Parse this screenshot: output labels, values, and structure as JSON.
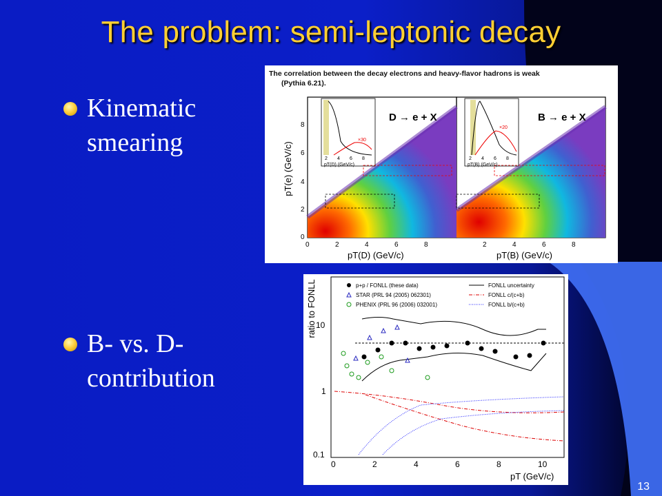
{
  "slide": {
    "title": "The problem: semi-leptonic decay",
    "bullets": [
      {
        "line1": "Kinematic",
        "line2": "smearing"
      },
      {
        "line1": "B- vs. D-",
        "line2": "contribution"
      }
    ],
    "slide_number": "13"
  },
  "figure_top": {
    "caption_line1": "The correlation between the decay electrons and heavy-flavor hadrons is weak",
    "caption_line2": "(Pythia 6.21).",
    "ylabel": "pT(e) (GeV/c)",
    "left_label": "D → e + X",
    "right_label": "B → e + X",
    "xlabel_left": "pT(D) (GeV/c)",
    "xlabel_right": "pT(B) (GeV/c)",
    "y_ticks": [
      "0",
      "2",
      "4",
      "6",
      "8"
    ],
    "x_ticks_left": [
      "0",
      "2",
      "4",
      "6",
      "8"
    ],
    "x_ticks_right": [
      "2",
      "4",
      "6",
      "8"
    ],
    "inset_left_label": "pT(D) (GeV/c)",
    "inset_right_label": "pT(B) (GeV/c)",
    "inset_left_ticks": [
      "2",
      "4",
      "6",
      "8"
    ],
    "inset_right_ticks": [
      "2",
      "4",
      "6",
      "8"
    ],
    "inset_left_annot": "×30",
    "inset_right_annot": "×20"
  },
  "figure_bottom": {
    "ylabel": "ratio to FONLL",
    "xlabel": "pT (GeV/c)",
    "y_ticks": [
      "0.1",
      "1",
      "10"
    ],
    "x_ticks": [
      "0",
      "2",
      "4",
      "6",
      "8",
      "10"
    ],
    "legend": [
      "p+p / FONLL (these data)",
      "STAR (PRL 94 (2005) 062301)",
      "PHENIX (PRL 96 (2006) 032001)",
      "FONLL uncertainty",
      "FONLL c/(c+b)",
      "FONLL b/(c+b)"
    ]
  }
}
